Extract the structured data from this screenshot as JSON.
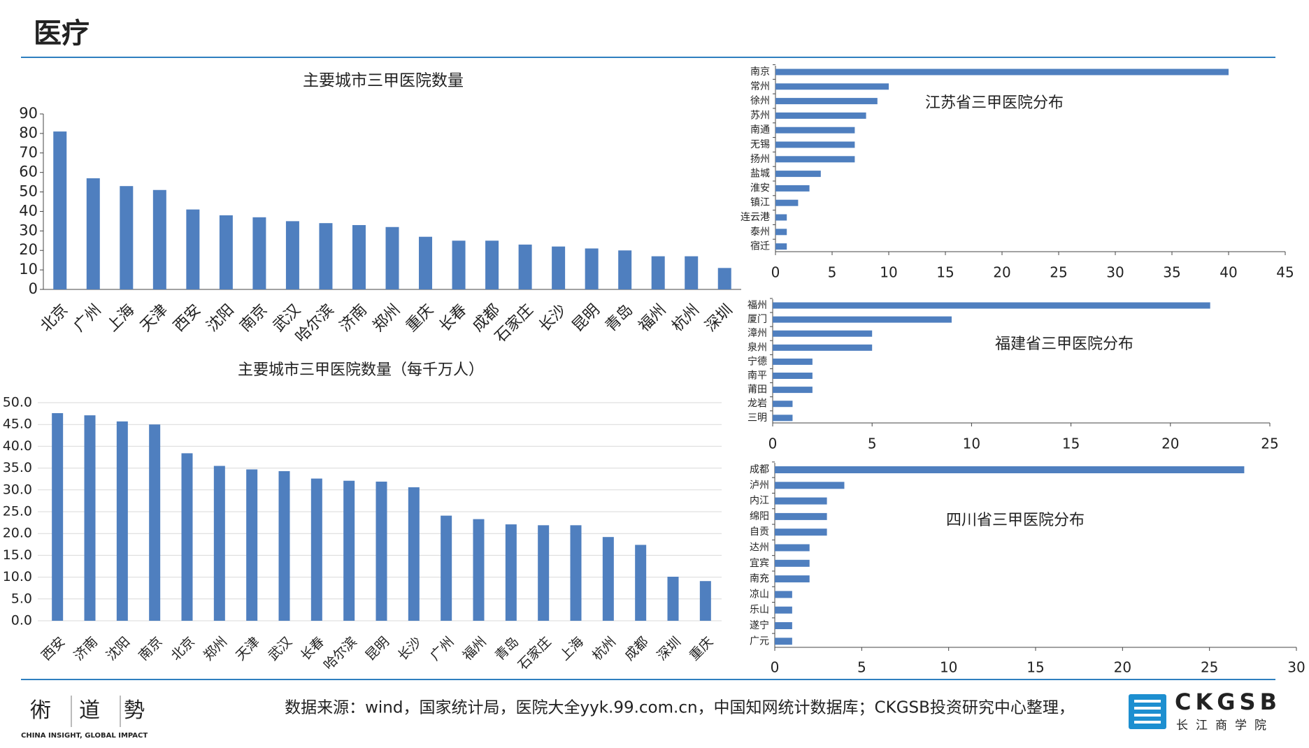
{
  "header": {
    "title": "医疗"
  },
  "footer": {
    "source": "数据来源：wind，国家统计局，医院大全yyk.99.com.cn，中国知网统计数据库；CKGSB投资研究中心整理，",
    "left_logo": {
      "chars": [
        "術",
        "道",
        "勢"
      ],
      "slogan": "CHINA INSIGHT, GLOBAL IMPACT"
    },
    "right_logo": {
      "name": "CKGSB",
      "subtitle": "长江商学院"
    }
  },
  "chart_data": [
    {
      "type": "bar",
      "title": "主要城市三甲医院数量",
      "color": "#4f7fbf",
      "categories": [
        "北京",
        "广州",
        "上海",
        "天津",
        "西安",
        "沈阳",
        "南京",
        "武汉",
        "哈尔滨",
        "济南",
        "郑州",
        "重庆",
        "长春",
        "成都",
        "石家庄",
        "长沙",
        "昆明",
        "青岛",
        "福州",
        "杭州",
        "深圳"
      ],
      "values": [
        81,
        57,
        53,
        51,
        41,
        38,
        37,
        35,
        34,
        33,
        32,
        27,
        25,
        25,
        23,
        22,
        21,
        20,
        17,
        17,
        11
      ],
      "ylim": [
        0,
        90
      ],
      "yticks": [
        0,
        10,
        20,
        30,
        40,
        50,
        60,
        70,
        80,
        90
      ],
      "grid": false
    },
    {
      "type": "bar",
      "title": "主要城市三甲医院数量（每千万人）",
      "color": "#4f7fbf",
      "categories": [
        "西安",
        "济南",
        "沈阳",
        "南京",
        "北京",
        "郑州",
        "天津",
        "武汉",
        "长春",
        "哈尔滨",
        "昆明",
        "长沙",
        "广州",
        "福州",
        "青岛",
        "石家庄",
        "上海",
        "杭州",
        "成都",
        "深圳",
        "重庆"
      ],
      "values": [
        47.6,
        47.1,
        45.7,
        45.0,
        38.4,
        35.5,
        34.7,
        34.3,
        32.6,
        32.1,
        31.9,
        30.6,
        24.1,
        23.3,
        22.1,
        21.9,
        21.9,
        19.2,
        17.4,
        10.1,
        9.1
      ],
      "ylim": [
        0,
        50
      ],
      "yticks": [
        {
          "value": 0,
          "label": "0.0"
        },
        {
          "value": 5,
          "label": "5.0"
        },
        {
          "value": 10,
          "label": "10.0"
        },
        {
          "value": 15,
          "label": "15.0"
        },
        {
          "value": 20,
          "label": "20.0"
        },
        {
          "value": 25,
          "label": "25.0"
        },
        {
          "value": 30,
          "label": "30.0"
        },
        {
          "value": 35,
          "label": "35.0"
        },
        {
          "value": 40,
          "label": "40.0"
        },
        {
          "value": 45,
          "label": "45.0"
        },
        {
          "value": 50,
          "label": "50.0"
        }
      ],
      "grid": true
    },
    {
      "type": "bar",
      "orientation": "horizontal",
      "title": "江苏省三甲医院分布",
      "color": "#4f7fbf",
      "categories": [
        "南京",
        "常州",
        "徐州",
        "苏州",
        "南通",
        "无锡",
        "扬州",
        "盐城",
        "淮安",
        "镇江",
        "连云港",
        "泰州",
        "宿迁"
      ],
      "values": [
        40,
        10,
        9,
        8,
        7,
        7,
        7,
        4,
        3,
        2,
        1,
        1,
        1
      ],
      "xlim": [
        0,
        45
      ],
      "xticks": [
        0,
        5,
        10,
        15,
        20,
        25,
        30,
        35,
        40,
        45
      ],
      "grid": false
    },
    {
      "type": "bar",
      "orientation": "horizontal",
      "title": "福建省三甲医院分布",
      "color": "#4f7fbf",
      "categories": [
        "福州",
        "厦门",
        "漳州",
        "泉州",
        "宁德",
        "南平",
        "莆田",
        "龙岩",
        "三明"
      ],
      "values": [
        22,
        9,
        5,
        5,
        2,
        2,
        2,
        1,
        1
      ],
      "xlim": [
        0,
        25
      ],
      "xticks": [
        0,
        5,
        10,
        15,
        20,
        25
      ],
      "grid": false
    },
    {
      "type": "bar",
      "orientation": "horizontal",
      "title": "四川省三甲医院分布",
      "color": "#4f7fbf",
      "categories": [
        "成都",
        "泸州",
        "内江",
        "绵阳",
        "自贡",
        "达州",
        "宜宾",
        "南充",
        "凉山",
        "乐山",
        "遂宁",
        "广元"
      ],
      "values": [
        27,
        4,
        3,
        3,
        3,
        2,
        2,
        2,
        1,
        1,
        1,
        1
      ],
      "xlim": [
        0,
        30
      ],
      "xticks": [
        0,
        5,
        10,
        15,
        20,
        25,
        30
      ],
      "grid": false
    }
  ]
}
